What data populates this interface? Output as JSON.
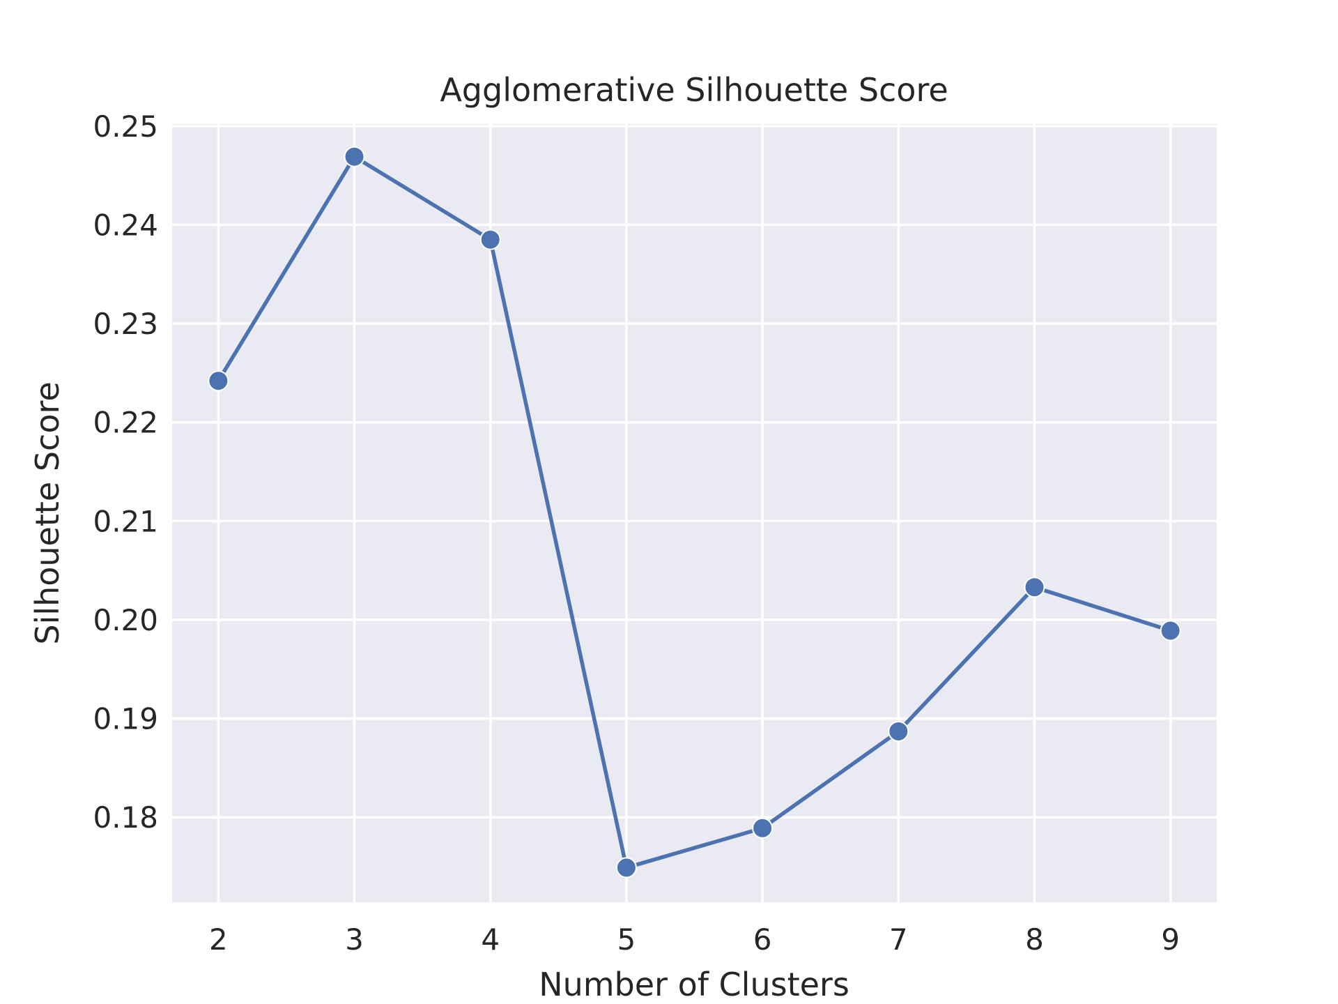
{
  "chart_data": {
    "type": "line",
    "title": "Agglomerative Silhouette Score",
    "xlabel": "Number of Clusters",
    "ylabel": "Silhouette Score",
    "x": [
      2,
      3,
      4,
      5,
      6,
      7,
      8,
      9
    ],
    "series": [
      {
        "values": [
          0.2242,
          0.2469,
          0.2385,
          0.1749,
          0.1789,
          0.1887,
          0.2033,
          0.1989
        ]
      }
    ],
    "xticks": [
      "2",
      "3",
      "4",
      "5",
      "6",
      "7",
      "8",
      "9"
    ],
    "yticks": [
      "0.18",
      "0.19",
      "0.20",
      "0.21",
      "0.22",
      "0.23",
      "0.24",
      "0.25"
    ],
    "ytick_values": [
      0.18,
      0.19,
      0.2,
      0.21,
      0.22,
      0.23,
      0.24,
      0.25
    ],
    "xlim": [
      1.66,
      9.34
    ],
    "ylim": [
      0.1714,
      0.2502
    ],
    "grid": true,
    "colors": {
      "line": "#4c72b0",
      "plot_background": "#eaeaf2",
      "grid": "#ffffff",
      "text": "#262626"
    }
  }
}
